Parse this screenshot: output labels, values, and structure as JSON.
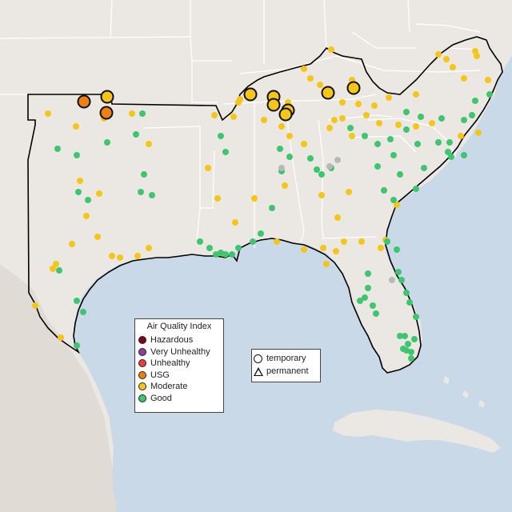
{
  "colors": {
    "water": "#c9d9e8",
    "land": "#ebe8e4",
    "terrain_west": "#ddd6ce",
    "state_lines": "#ffffff",
    "region_outline": "#000000"
  },
  "aqi_legend": {
    "title": "Air Quality Index",
    "items": [
      {
        "label": "Hazardous",
        "color": "#7e0023"
      },
      {
        "label": "Very Unhealthy",
        "color": "#8f3f97"
      },
      {
        "label": "Unhealthy",
        "color": "#e8413c"
      },
      {
        "label": "USG",
        "color": "#f07f12"
      },
      {
        "label": "Moderate",
        "color": "#f5c518"
      },
      {
        "label": "Good",
        "color": "#3ec66e"
      }
    ]
  },
  "type_legend": {
    "items": [
      {
        "label": "temporary",
        "shape": "circle"
      },
      {
        "label": "permanent",
        "shape": "triangle"
      }
    ]
  },
  "no_data_color": "#b8b8b8"
}
